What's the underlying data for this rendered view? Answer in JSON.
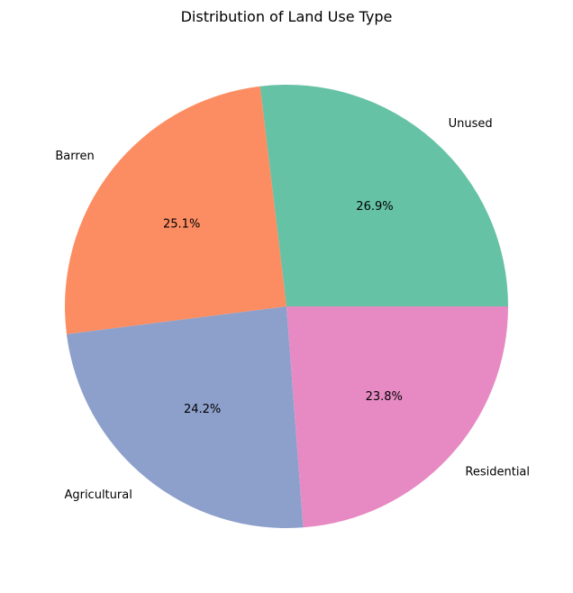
{
  "chart_data": {
    "type": "pie",
    "title": "Distribution of Land Use Type",
    "slices": [
      {
        "label": "Unused",
        "value": 26.9,
        "percent_label": "26.9%",
        "color": "#66c2a5"
      },
      {
        "label": "Barren",
        "value": 25.1,
        "percent_label": "25.1%",
        "color": "#fc8d62"
      },
      {
        "label": "Agricultural",
        "value": 24.2,
        "percent_label": "24.2%",
        "color": "#8da0cb"
      },
      {
        "label": "Residential",
        "value": 23.8,
        "percent_label": "23.8%",
        "color": "#e78ac3"
      }
    ],
    "start_angle": 0,
    "direction": "counterclockwise",
    "legend": "none"
  }
}
